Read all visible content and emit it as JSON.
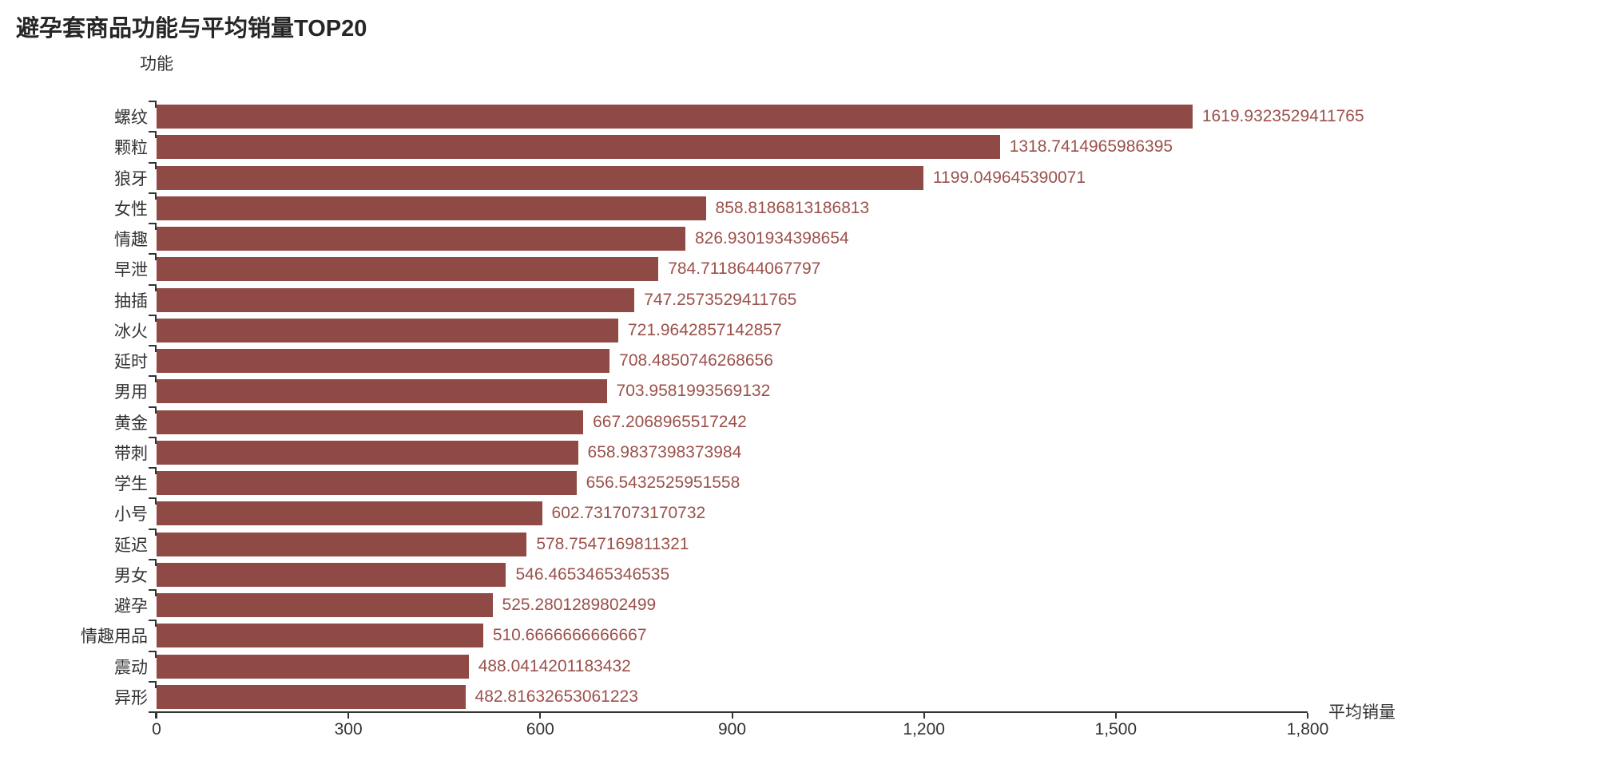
{
  "title": "避孕套商品功能与平均销量TOP20",
  "y_axis_title": "功能",
  "x_axis_title": "平均销量",
  "colors": {
    "bar": "#8F4A45",
    "value_label": "#9B514B",
    "axis": "#333333",
    "title": "#262626"
  },
  "x_axis": {
    "min": 0,
    "max": 1800,
    "ticks": [
      {
        "label": "0",
        "value": 0
      },
      {
        "label": "300",
        "value": 300
      },
      {
        "label": "600",
        "value": 600
      },
      {
        "label": "900",
        "value": 900
      },
      {
        "label": "1,200",
        "value": 1200
      },
      {
        "label": "1,500",
        "value": 1500
      },
      {
        "label": "1,800",
        "value": 1800
      }
    ]
  },
  "chart_data": {
    "type": "bar",
    "orientation": "horizontal",
    "title": "避孕套商品功能与平均销量TOP20",
    "xlabel": "平均销量",
    "ylabel": "功能",
    "xlim": [
      0,
      1800
    ],
    "grid": false,
    "legend": false,
    "categories": [
      "螺纹",
      "颗粒",
      "狼牙",
      "女性",
      "情趣",
      "早泄",
      "抽插",
      "冰火",
      "延时",
      "男用",
      "黄金",
      "带刺",
      "学生",
      "小号",
      "延迟",
      "男女",
      "避孕",
      "情趣用品",
      "震动",
      "异形"
    ],
    "values": [
      1619.9323529411765,
      1318.7414965986395,
      1199.049645390071,
      858.8186813186813,
      826.9301934398654,
      784.7118644067797,
      747.2573529411765,
      721.9642857142857,
      708.4850746268656,
      703.9581993569132,
      667.2068965517242,
      658.9837398373984,
      656.5432525951558,
      602.7317073170732,
      578.7547169811321,
      546.4653465346535,
      525.2801289802499,
      510.6666666666667,
      488.0414201183432,
      482.81632653061223
    ],
    "value_labels": [
      "1619.9323529411765",
      "1318.7414965986395",
      "1199.049645390071",
      "858.8186813186813",
      "826.9301934398654",
      "784.7118644067797",
      "747.2573529411765",
      "721.9642857142857",
      "708.4850746268656",
      "703.9581993569132",
      "667.2068965517242",
      "658.9837398373984",
      "656.5432525951558",
      "602.7317073170732",
      "578.7547169811321",
      "546.4653465346535",
      "525.2801289802499",
      "510.6666666666667",
      "488.0414201183432",
      "482.81632653061223"
    ]
  }
}
